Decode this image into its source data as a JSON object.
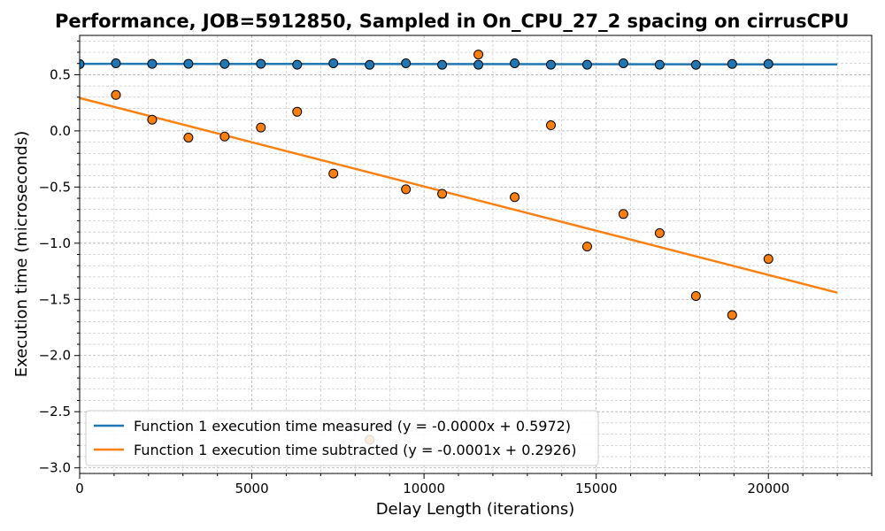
{
  "chart_data": {
    "type": "scatter",
    "title": "Performance, JOB=5912850, Sampled in On_CPU_27_2 spacing on cirrusCPU",
    "xlabel": "Delay Length (iterations)",
    "ylabel": "Execution time (microseconds)",
    "xlim": [
      0,
      23000
    ],
    "ylim": [
      -3.05,
      0.85
    ],
    "xticks": [
      0,
      5000,
      10000,
      15000,
      20000
    ],
    "xtick_labels": [
      "0",
      "5000",
      "10000",
      "15000",
      "20000"
    ],
    "yticks": [
      -3.0,
      -2.5,
      -2.0,
      -1.5,
      -1.0,
      -0.5,
      0.0,
      0.5
    ],
    "ytick_labels": [
      "−3.0",
      "−2.5",
      "−2.0",
      "−1.5",
      "−1.0",
      "−0.5",
      "0.0",
      "0.5"
    ],
    "grid": true,
    "legend_position": "lower-left",
    "series": [
      {
        "name": "Function 1 execution time measured (y = -0.0000x + 0.5972)",
        "color": "#1f77b4",
        "points": [
          [
            0,
            0.595
          ],
          [
            1053,
            0.602
          ],
          [
            2105,
            0.597
          ],
          [
            3158,
            0.597
          ],
          [
            4211,
            0.596
          ],
          [
            5263,
            0.597
          ],
          [
            6316,
            0.589
          ],
          [
            7368,
            0.602
          ],
          [
            8421,
            0.588
          ],
          [
            9474,
            0.602
          ],
          [
            10526,
            0.588
          ],
          [
            11579,
            0.589
          ],
          [
            12632,
            0.602
          ],
          [
            13684,
            0.589
          ],
          [
            14737,
            0.589
          ],
          [
            15789,
            0.602
          ],
          [
            16842,
            0.589
          ],
          [
            17895,
            0.588
          ],
          [
            18947,
            0.596
          ],
          [
            20000,
            0.596
          ]
        ],
        "fit_line": [
          [
            0,
            0.5972
          ],
          [
            22000,
            0.592
          ]
        ]
      },
      {
        "name": "Function 1 execution time subtracted (y = -0.0001x + 0.2926)",
        "color": "#ff7f0e",
        "points": [
          [
            1053,
            0.32
          ],
          [
            2105,
            0.1
          ],
          [
            3158,
            -0.06
          ],
          [
            4211,
            -0.05
          ],
          [
            5263,
            0.03
          ],
          [
            6316,
            0.17
          ],
          [
            7368,
            -0.38
          ],
          [
            8421,
            -2.75
          ],
          [
            9474,
            -0.52
          ],
          [
            10526,
            -0.56
          ],
          [
            11579,
            0.68
          ],
          [
            12632,
            -0.59
          ],
          [
            13684,
            0.05
          ],
          [
            14737,
            -1.03
          ],
          [
            15789,
            -0.74
          ],
          [
            16842,
            -0.91
          ],
          [
            17895,
            -1.47
          ],
          [
            18947,
            -1.64
          ],
          [
            20000,
            -1.14
          ]
        ],
        "fit_line": [
          [
            0,
            0.2926
          ],
          [
            22000,
            -1.44
          ]
        ]
      }
    ]
  }
}
